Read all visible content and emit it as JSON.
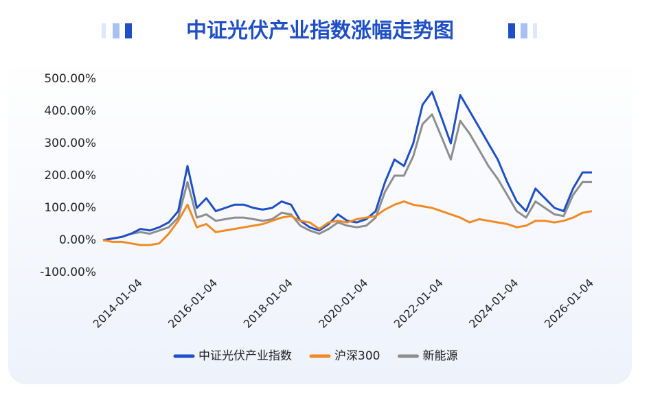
{
  "chart_data": {
    "type": "line",
    "title": "中证光伏产业指数涨幅走势图",
    "x": [
      "2013-01-04",
      "2013-04-04",
      "2013-07-04",
      "2013-10-04",
      "2014-01-04",
      "2014-04-04",
      "2014-07-04",
      "2014-10-04",
      "2015-01-04",
      "2015-04-04",
      "2015-07-04",
      "2015-10-04",
      "2016-01-04",
      "2016-04-04",
      "2016-07-04",
      "2016-10-04",
      "2017-01-04",
      "2017-04-04",
      "2017-07-04",
      "2017-10-04",
      "2018-01-04",
      "2018-04-04",
      "2018-07-04",
      "2018-10-04",
      "2019-01-04",
      "2019-04-04",
      "2019-07-04",
      "2019-10-04",
      "2020-01-04",
      "2020-04-04",
      "2020-07-04",
      "2020-10-04",
      "2021-01-04",
      "2021-04-04",
      "2021-07-04",
      "2021-10-04",
      "2022-01-04",
      "2022-04-04",
      "2022-07-04",
      "2022-10-04",
      "2023-01-04",
      "2023-04-04",
      "2023-07-04",
      "2023-10-04",
      "2024-01-04",
      "2024-04-04",
      "2024-07-04",
      "2024-10-04",
      "2025-01-04",
      "2025-04-04",
      "2025-07-04",
      "2025-10-04",
      "2026-01-04"
    ],
    "series": [
      {
        "name": "中证光伏产业指数",
        "color": "#1f4fc6",
        "values": [
          0,
          5,
          10,
          20,
          35,
          30,
          40,
          55,
          90,
          230,
          100,
          130,
          90,
          100,
          110,
          110,
          100,
          95,
          100,
          120,
          110,
          60,
          40,
          30,
          50,
          80,
          60,
          55,
          65,
          90,
          180,
          250,
          230,
          300,
          420,
          460,
          380,
          300,
          450,
          400,
          350,
          300,
          250,
          180,
          120,
          90,
          160,
          130,
          100,
          90,
          160,
          210,
          210
        ]
      },
      {
        "name": "沪深300",
        "color": "#f08a24",
        "values": [
          0,
          -5,
          -5,
          -10,
          -15,
          -15,
          -10,
          20,
          60,
          110,
          40,
          50,
          25,
          30,
          35,
          40,
          45,
          50,
          60,
          70,
          75,
          60,
          55,
          35,
          55,
          60,
          55,
          65,
          70,
          75,
          95,
          110,
          120,
          110,
          105,
          100,
          90,
          80,
          70,
          55,
          65,
          60,
          55,
          50,
          40,
          45,
          60,
          60,
          55,
          60,
          70,
          85,
          90
        ]
      },
      {
        "name": "新能源",
        "color": "#8e8e8e",
        "values": [
          0,
          5,
          10,
          20,
          25,
          20,
          30,
          40,
          70,
          180,
          70,
          80,
          60,
          65,
          70,
          70,
          65,
          60,
          65,
          85,
          80,
          45,
          30,
          20,
          35,
          55,
          45,
          40,
          45,
          70,
          150,
          200,
          200,
          260,
          360,
          390,
          320,
          250,
          370,
          330,
          280,
          230,
          190,
          140,
          90,
          70,
          120,
          100,
          80,
          75,
          140,
          180,
          180
        ]
      }
    ],
    "xlim": [
      "2013-01-04",
      "2026-01-04"
    ],
    "xticks": [
      "2014-01-04",
      "2016-01-04",
      "2018-01-04",
      "2020-01-04",
      "2022-01-04",
      "2024-01-04",
      "2026-01-04"
    ],
    "ylim": [
      -100,
      500
    ],
    "yticks": [
      {
        "value": -100,
        "label": "-100.00%"
      },
      {
        "value": 0,
        "label": "0.00%"
      },
      {
        "value": 100,
        "label": "100.00%"
      },
      {
        "value": 200,
        "label": "200.00%"
      },
      {
        "value": 300,
        "label": "300.00%"
      },
      {
        "value": 400,
        "label": "400.00%"
      },
      {
        "value": 500,
        "label": "500.00%"
      }
    ],
    "grid": false,
    "legend": "bottom"
  }
}
